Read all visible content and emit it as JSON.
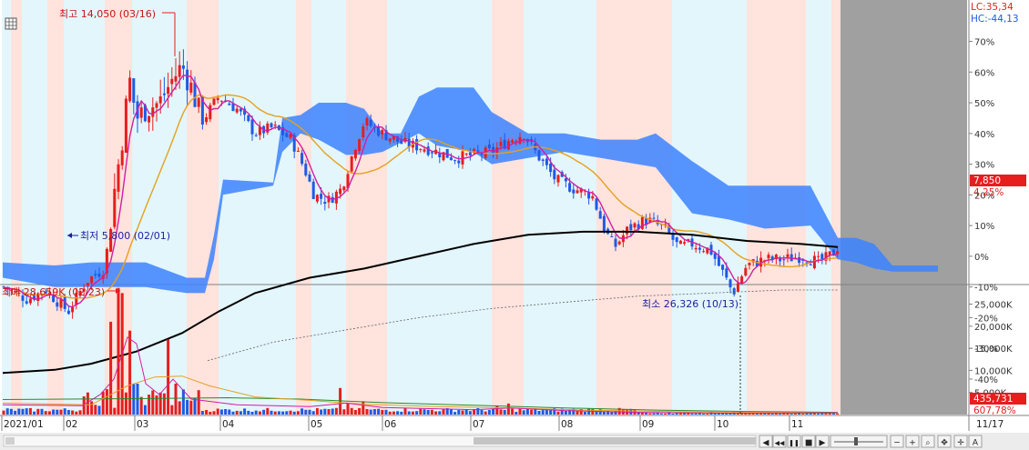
{
  "chart_data": {
    "type": "candlestick",
    "price_panel": {
      "y_axis_percent_ticks": [
        "70%",
        "60%",
        "50%",
        "40%",
        "30%",
        "20%",
        "10%",
        "0%",
        "-10%",
        "-20%",
        "-30%",
        "-40%"
      ],
      "y_axis_percent_values": [
        70,
        60,
        50,
        40,
        30,
        20,
        10,
        0,
        -10,
        -20,
        -30,
        -40
      ],
      "ylim_percent": [
        -45,
        75
      ],
      "top_labels": {
        "lc": "LC:35,34",
        "hc": "HC:-44,13"
      },
      "current_price": "7,850",
      "current_change": "4,25%",
      "high_annotation": "최고 14,050 (03/16)",
      "low_annotation": "최저 5,800 (02/01)",
      "colors": {
        "up": "#e61e1e",
        "down": "#1e5ae6",
        "ma5": "#d21ea0",
        "ma20": "#e6a01e",
        "ma120": "#000000",
        "cloud": "#3c82ff",
        "up_zone": "#ffe3dc",
        "down_zone": "#e3f6fb",
        "future": "#a0a0a0"
      }
    },
    "volume_panel": {
      "y_axis_ticks": [
        "25,000K",
        "20,000K",
        "15,000K",
        "10,000K",
        "5,000K"
      ],
      "y_axis_values": [
        25000,
        20000,
        15000,
        10000,
        5000
      ],
      "ylim": [
        0,
        29000
      ],
      "max_annotation": "최대 28,659K (02/23)",
      "min_annotation": "최소 26,326 (10/13)",
      "current_volume": "435,731",
      "current_volume_change": "607,78%"
    },
    "x_axis": {
      "labels": [
        "2021/01",
        "02",
        "03",
        "04",
        "05",
        "06",
        "07",
        "08",
        "09",
        "10",
        "11"
      ],
      "end_label": "11/17"
    }
  },
  "toolbar": {
    "icons": [
      "prev-icon",
      "rewind-icon",
      "pause-icon",
      "stop-icon",
      "forward-icon",
      "zoom-slider-icon",
      "zoom-out-icon",
      "zoom-in-icon",
      "search-icon",
      "pan-icon",
      "crosshair-icon",
      "text-icon"
    ],
    "labels": {
      "text": "A"
    }
  }
}
